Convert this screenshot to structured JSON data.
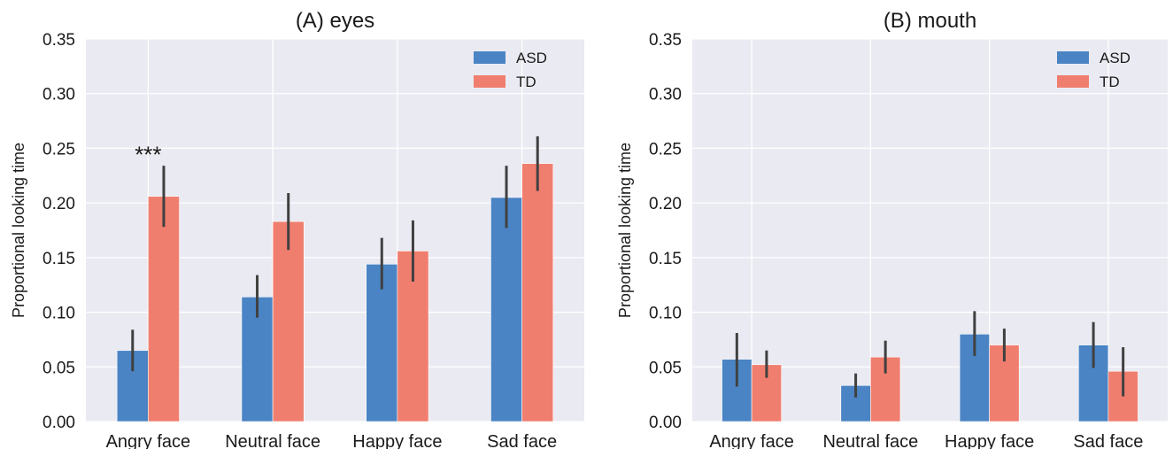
{
  "chart_data": [
    {
      "type": "bar",
      "title": "(A) eyes",
      "xlabel": "",
      "ylabel": "Proportional looking time",
      "ylim": [
        0,
        0.35
      ],
      "yticks": [
        "0.00",
        "0.05",
        "0.10",
        "0.15",
        "0.20",
        "0.25",
        "0.30",
        "0.35"
      ],
      "categories": [
        "Angry face",
        "Neutral face",
        "Happy face",
        "Sad face"
      ],
      "series": [
        {
          "name": "ASD",
          "values": [
            0.065,
            0.114,
            0.144,
            0.205
          ],
          "error_low": [
            0.046,
            0.095,
            0.121,
            0.177
          ],
          "error_high": [
            0.084,
            0.134,
            0.168,
            0.234
          ]
        },
        {
          "name": "TD",
          "values": [
            0.206,
            0.183,
            0.156,
            0.236
          ],
          "error_low": [
            0.178,
            0.157,
            0.128,
            0.211
          ],
          "error_high": [
            0.234,
            0.209,
            0.184,
            0.261
          ]
        }
      ],
      "annotations": [
        {
          "text": "***",
          "category_index": 0,
          "y": 0.245
        }
      ],
      "legend_position": "top-right",
      "grid": true
    },
    {
      "type": "bar",
      "title": "(B) mouth",
      "xlabel": "",
      "ylabel": "Proportional looking time",
      "ylim": [
        0,
        0.35
      ],
      "yticks": [
        "0.00",
        "0.05",
        "0.10",
        "0.15",
        "0.20",
        "0.25",
        "0.30",
        "0.35"
      ],
      "categories": [
        "Angry face",
        "Neutral face",
        "Happy face",
        "Sad face"
      ],
      "series": [
        {
          "name": "ASD",
          "values": [
            0.057,
            0.033,
            0.08,
            0.07
          ],
          "error_low": [
            0.032,
            0.022,
            0.06,
            0.049
          ],
          "error_high": [
            0.081,
            0.044,
            0.101,
            0.091
          ]
        },
        {
          "name": "TD",
          "values": [
            0.052,
            0.059,
            0.07,
            0.046
          ],
          "error_low": [
            0.04,
            0.044,
            0.055,
            0.023
          ],
          "error_high": [
            0.065,
            0.074,
            0.085,
            0.068
          ]
        }
      ],
      "annotations": [],
      "legend_position": "top-right",
      "grid": true
    }
  ],
  "colors": {
    "ASD": "#4a84c4",
    "TD": "#f07e6e",
    "plot_background": "#eaeaf2",
    "grid": "#ffffff",
    "error_bar": "#404040"
  }
}
